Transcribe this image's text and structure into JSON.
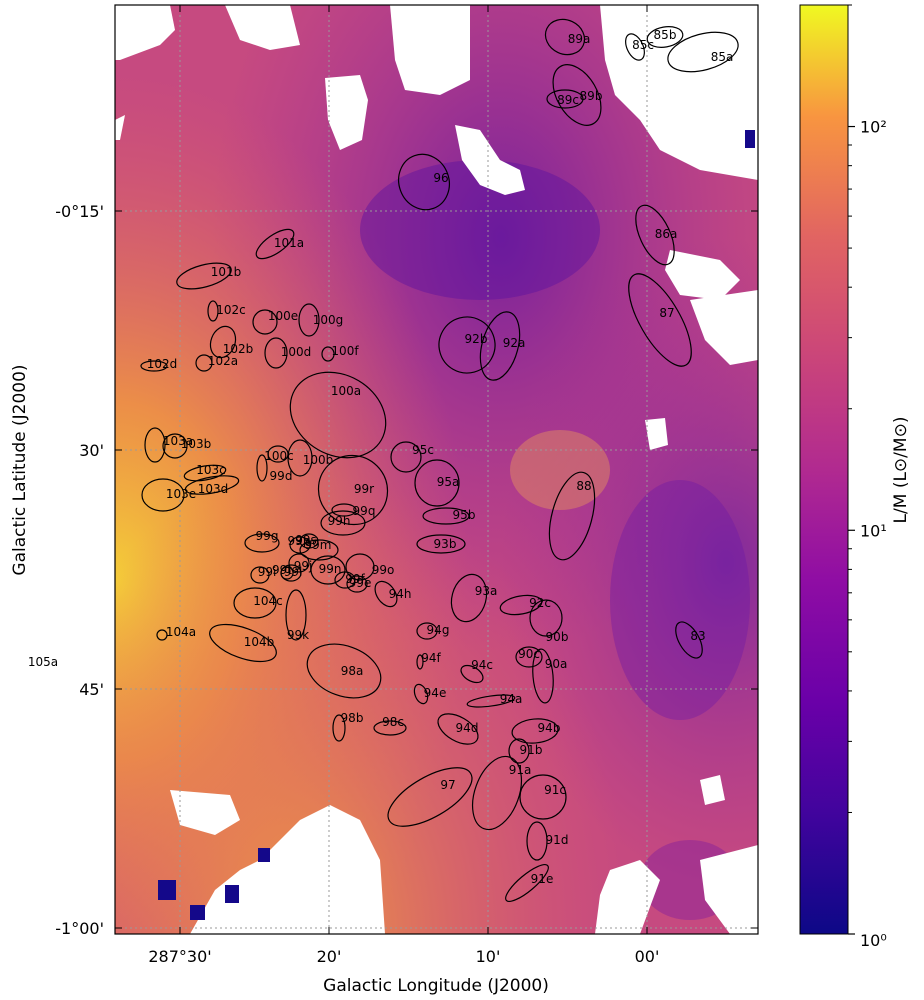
{
  "chart_data": {
    "type": "map",
    "xlabel": "Galactic Longitude (J2000)",
    "ylabel": "Galactic Latitude (J2000)",
    "x_ticks": [
      "287°30'",
      "20'",
      "10'",
      "00'"
    ],
    "y_ticks": [
      "-0°15'",
      "30'",
      "45'",
      "-1°00'"
    ],
    "colorbar": {
      "label": "L/M (L⊙/M⊙)",
      "scale": "log",
      "range": [
        1,
        200
      ],
      "ticks": [
        "10⁰",
        "10¹",
        "10²"
      ],
      "colormap": "plasma"
    },
    "grid": true,
    "regions": [
      {
        "id": "83"
      },
      {
        "id": "85a"
      },
      {
        "id": "85b"
      },
      {
        "id": "85c"
      },
      {
        "id": "86a"
      },
      {
        "id": "87"
      },
      {
        "id": "88"
      },
      {
        "id": "89a"
      },
      {
        "id": "89b"
      },
      {
        "id": "89c"
      },
      {
        "id": "90a"
      },
      {
        "id": "90b"
      },
      {
        "id": "90c"
      },
      {
        "id": "91a"
      },
      {
        "id": "91b"
      },
      {
        "id": "91c"
      },
      {
        "id": "91d"
      },
      {
        "id": "91e"
      },
      {
        "id": "92a"
      },
      {
        "id": "92b"
      },
      {
        "id": "92c"
      },
      {
        "id": "93a"
      },
      {
        "id": "93b"
      },
      {
        "id": "94a"
      },
      {
        "id": "94b"
      },
      {
        "id": "94c"
      },
      {
        "id": "94d"
      },
      {
        "id": "94e"
      },
      {
        "id": "94f"
      },
      {
        "id": "94g"
      },
      {
        "id": "94h"
      },
      {
        "id": "95a"
      },
      {
        "id": "95b"
      },
      {
        "id": "95c"
      },
      {
        "id": "96"
      },
      {
        "id": "97"
      },
      {
        "id": "98a"
      },
      {
        "id": "98b"
      },
      {
        "id": "98c"
      },
      {
        "id": "99d"
      },
      {
        "id": "99e"
      },
      {
        "id": "99f"
      },
      {
        "id": "99g"
      },
      {
        "id": "99h"
      },
      {
        "id": "99i"
      },
      {
        "id": "99j"
      },
      {
        "id": "99k"
      },
      {
        "id": "99l"
      },
      {
        "id": "99m"
      },
      {
        "id": "99n"
      },
      {
        "id": "99o"
      },
      {
        "id": "99p"
      },
      {
        "id": "99q"
      },
      {
        "id": "99r"
      },
      {
        "id": "99s"
      },
      {
        "id": "99t"
      },
      {
        "id": "100a"
      },
      {
        "id": "100b"
      },
      {
        "id": "100c"
      },
      {
        "id": "100d"
      },
      {
        "id": "100e"
      },
      {
        "id": "100f"
      },
      {
        "id": "100g"
      },
      {
        "id": "101a"
      },
      {
        "id": "101b"
      },
      {
        "id": "102a"
      },
      {
        "id": "102b"
      },
      {
        "id": "102c"
      },
      {
        "id": "102d"
      },
      {
        "id": "103a"
      },
      {
        "id": "103b"
      },
      {
        "id": "103c"
      },
      {
        "id": "103d"
      },
      {
        "id": "103e"
      },
      {
        "id": "104a"
      },
      {
        "id": "104b"
      },
      {
        "id": "104c"
      },
      {
        "id": "105a"
      }
    ]
  }
}
